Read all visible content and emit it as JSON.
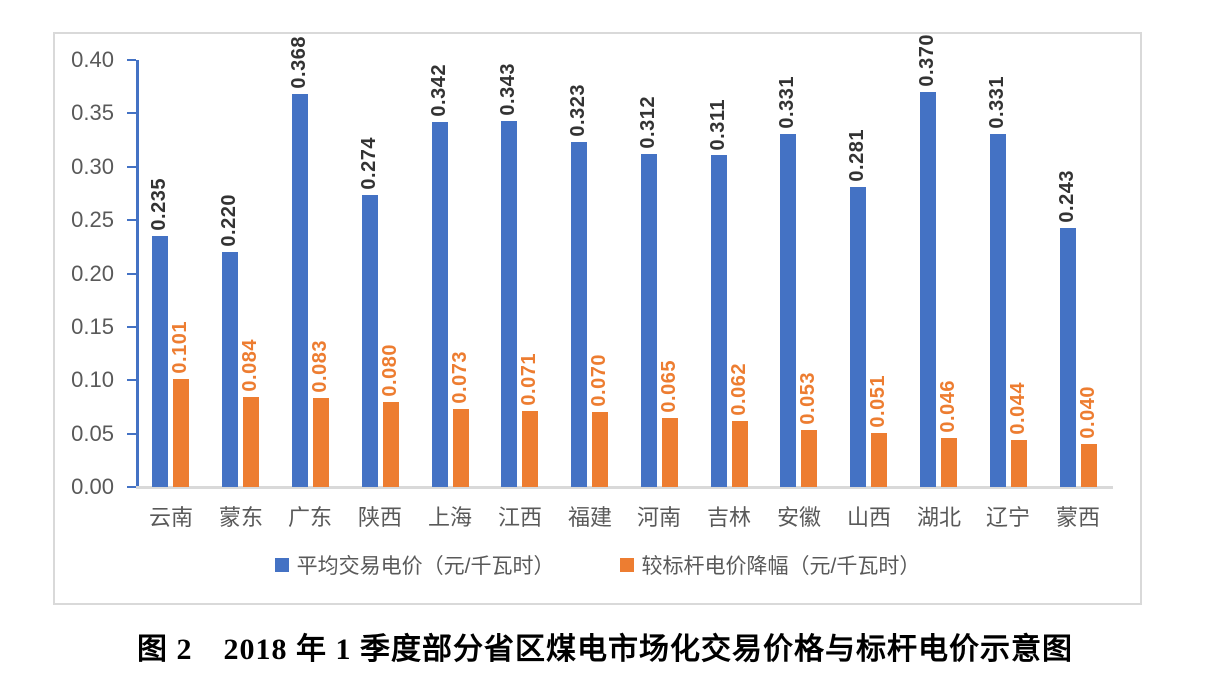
{
  "figure": {
    "caption": "图 2　2018 年 1 季度部分省区煤电市场化交易价格与标杆电价示意图"
  },
  "chart_data": {
    "type": "bar",
    "title": "",
    "xlabel": "",
    "ylabel": "",
    "categories": [
      "云南",
      "蒙东",
      "广东",
      "陕西",
      "上海",
      "江西",
      "福建",
      "河南",
      "吉林",
      "安徽",
      "山西",
      "湖北",
      "辽宁",
      "蒙西"
    ],
    "series": [
      {
        "name": "平均交易电价（元/千瓦时）",
        "color": "#4472C4",
        "label_color": "#333333",
        "values": [
          0.235,
          0.22,
          0.368,
          0.274,
          0.342,
          0.343,
          0.323,
          0.312,
          0.311,
          0.331,
          0.281,
          0.37,
          0.331,
          0.243
        ]
      },
      {
        "name": "较标杆电价降幅（元/千瓦时）",
        "color": "#ED7D31",
        "label_color": "#ED7D31",
        "values": [
          0.101,
          0.084,
          0.083,
          0.08,
          0.073,
          0.071,
          0.07,
          0.065,
          0.062,
          0.053,
          0.051,
          0.046,
          0.044,
          0.04
        ]
      }
    ],
    "ylim": [
      0.0,
      0.4
    ],
    "y_tick_step": 0.05,
    "y_tick_labels": [
      "0.00",
      "0.05",
      "0.10",
      "0.15",
      "0.20",
      "0.25",
      "0.30",
      "0.35",
      "0.40"
    ],
    "grid": false,
    "legend_position": "bottom",
    "value_labels": "rotated-90-above-bars, 3 decimal places",
    "axis_color": "#4472C4",
    "baseline_color": "#D9D9D9",
    "tick_label_color": "#595959",
    "legend_text_color": "#595959"
  }
}
